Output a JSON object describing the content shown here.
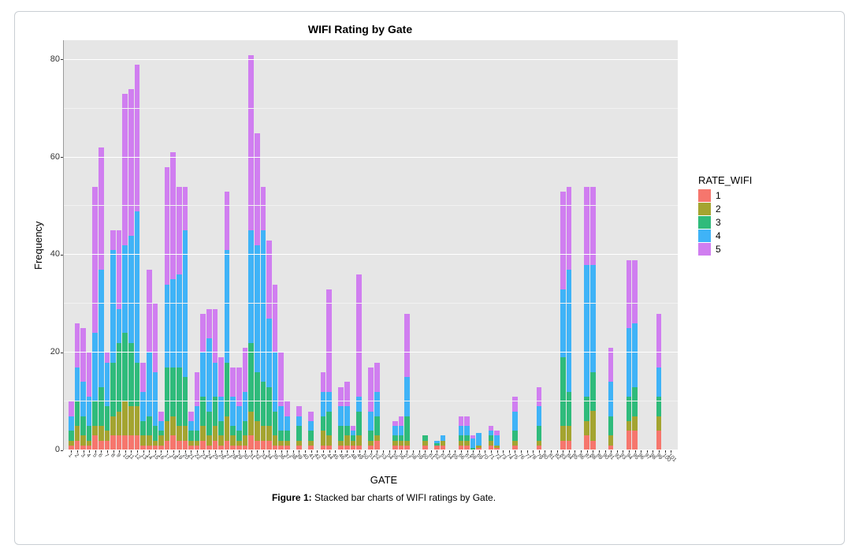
{
  "chart": {
    "type": "stacked-bar",
    "title": "WIFI Rating by Gate",
    "x_axis_title": "GATE",
    "y_axis_title": "Frequency",
    "ylim": [
      0,
      84
    ],
    "y_ticks": [
      0,
      20,
      40,
      60,
      80
    ],
    "background_color": "#e6e6e6",
    "grid_color": "#ffffff",
    "panel_border_color": "#c9ced3",
    "legend": {
      "title": "RATE_WIFI",
      "items": [
        {
          "label": "1",
          "color": "#f6766d"
        },
        {
          "label": "2",
          "color": "#a4a430"
        },
        {
          "label": "3",
          "color": "#2fbb7b"
        },
        {
          "label": "4",
          "color": "#3fb3f7"
        },
        {
          "label": "5",
          "color": "#d07ef0"
        }
      ]
    },
    "series_colors": {
      "1": "#f6766d",
      "2": "#a4a430",
      "3": "#2fbb7b",
      "4": "#3fb3f7",
      "5": "#d07ef0"
    },
    "categories": [
      "1",
      "2",
      "3",
      "4",
      "5",
      "6",
      "7",
      "8",
      "9",
      "10",
      "11",
      "12",
      "13",
      "14",
      "15",
      "16",
      "17",
      "18",
      "19",
      "20",
      "21",
      "22",
      "23",
      "24",
      "25",
      "26",
      "27",
      "28",
      "29",
      "30",
      "31",
      "32",
      "33",
      "34",
      "35",
      "36",
      "37",
      "38",
      "39",
      "40",
      "41",
      "42",
      "43",
      "44",
      "45",
      "46",
      "47",
      "48",
      "49",
      "50",
      "51",
      "52",
      "53",
      "54",
      "55",
      "56",
      "57",
      "58",
      "59",
      "60",
      "61",
      "62",
      "63",
      "64",
      "65",
      "66",
      "67",
      "68",
      "69",
      "70",
      "71",
      "72",
      "73",
      "74",
      "75",
      "76",
      "77",
      "78",
      "79",
      "80",
      "81",
      "82",
      "83",
      "84",
      "85",
      "86",
      "87",
      "88",
      "89",
      "90",
      "91",
      "92",
      "93",
      "94",
      "95",
      "96",
      "97",
      "98",
      "99",
      "100",
      "101"
    ],
    "stacks": [
      {
        "1": 1,
        "2": 1,
        "3": 2,
        "4": 3,
        "5": 3
      },
      {
        "1": 2,
        "2": 3,
        "3": 5,
        "4": 7,
        "5": 9
      },
      {
        "1": 1,
        "2": 2,
        "3": 4,
        "4": 7,
        "5": 11
      },
      {
        "1": 1,
        "2": 1,
        "3": 3,
        "4": 6,
        "5": 9
      },
      {
        "1": 3,
        "2": 2,
        "3": 5,
        "4": 14,
        "5": 30
      },
      {
        "1": 2,
        "2": 3,
        "3": 8,
        "4": 24,
        "5": 25
      },
      {
        "1": 2,
        "2": 2,
        "3": 5,
        "4": 9,
        "5": 2
      },
      {
        "1": 3,
        "2": 4,
        "3": 11,
        "4": 23,
        "5": 4
      },
      {
        "1": 3,
        "2": 5,
        "3": 14,
        "4": 7,
        "5": 16
      },
      {
        "1": 3,
        "2": 7,
        "3": 14,
        "4": 18,
        "5": 31
      },
      {
        "1": 3,
        "2": 6,
        "3": 13,
        "4": 22,
        "5": 30
      },
      {
        "1": 3,
        "2": 6,
        "3": 9,
        "4": 31,
        "5": 30
      },
      {
        "1": 1,
        "2": 2,
        "3": 3,
        "4": 6,
        "5": 6
      },
      {
        "1": 1,
        "2": 2,
        "3": 4,
        "4": 13,
        "5": 17
      },
      {
        "1": 1,
        "2": 1,
        "3": 3,
        "4": 11,
        "5": 14
      },
      {
        "1": 1,
        "2": 2,
        "3": 1,
        "4": 2,
        "5": 2
      },
      {
        "1": 2,
        "2": 4,
        "3": 11,
        "4": 17,
        "5": 24
      },
      {
        "1": 3,
        "2": 4,
        "3": 10,
        "4": 18,
        "5": 26
      },
      {
        "1": 2,
        "2": 3,
        "3": 12,
        "4": 19,
        "5": 18
      },
      {
        "1": 2,
        "2": 3,
        "3": 10,
        "4": 30,
        "5": 9
      },
      {
        "1": 1,
        "2": 1,
        "3": 2,
        "4": 2,
        "5": 2
      },
      {
        "1": 1,
        "2": 1,
        "3": 2,
        "4": 5,
        "5": 7
      },
      {
        "1": 2,
        "2": 3,
        "3": 6,
        "4": 9,
        "5": 8
      },
      {
        "1": 1,
        "2": 2,
        "3": 5,
        "4": 15,
        "5": 6
      },
      {
        "1": 2,
        "2": 3,
        "3": 6,
        "4": 7,
        "5": 11
      },
      {
        "1": 1,
        "2": 2,
        "3": 3,
        "4": 5,
        "5": 8
      },
      {
        "1": 2,
        "2": 5,
        "3": 11,
        "4": 23,
        "5": 12
      },
      {
        "1": 1,
        "2": 2,
        "3": 2,
        "4": 6,
        "5": 6
      },
      {
        "1": 1,
        "2": 1,
        "3": 2,
        "4": 5,
        "5": 8
      },
      {
        "1": 1,
        "2": 2,
        "3": 3,
        "4": 6,
        "5": 9
      },
      {
        "1": 3,
        "2": 5,
        "3": 14,
        "4": 23,
        "5": 36
      },
      {
        "1": 2,
        "2": 4,
        "3": 10,
        "4": 26,
        "5": 23
      },
      {
        "1": 2,
        "2": 3,
        "3": 9,
        "4": 31,
        "5": 9
      },
      {
        "1": 2,
        "2": 3,
        "3": 8,
        "4": 14,
        "5": 16
      },
      {
        "1": 1,
        "2": 2,
        "3": 5,
        "4": 12,
        "5": 14
      },
      {
        "1": 1,
        "2": 1,
        "3": 2,
        "4": 5,
        "5": 11
      },
      {
        "1": 1,
        "2": 1,
        "3": 2,
        "4": 3,
        "5": 3
      },
      {
        "1": 0,
        "2": 0,
        "3": 0,
        "4": 0,
        "5": 0
      },
      {
        "1": 1,
        "2": 1,
        "3": 3,
        "4": 2,
        "5": 2
      },
      {
        "1": 0,
        "2": 0,
        "3": 0,
        "4": 0,
        "5": 0
      },
      {
        "1": 1,
        "2": 1,
        "3": 2,
        "4": 2,
        "5": 2
      },
      {
        "1": 0,
        "2": 0,
        "3": 0,
        "4": 0,
        "5": 0
      },
      {
        "1": 1,
        "2": 3,
        "3": 3,
        "4": 5,
        "5": 4
      },
      {
        "1": 1,
        "2": 2,
        "3": 5,
        "4": 4,
        "5": 21
      },
      {
        "1": 0,
        "2": 0,
        "3": 0,
        "4": 0,
        "5": 0
      },
      {
        "1": 1,
        "2": 1,
        "3": 3,
        "4": 4,
        "5": 4
      },
      {
        "1": 1,
        "2": 2,
        "3": 2,
        "4": 4,
        "5": 5
      },
      {
        "1": 1,
        "2": 1,
        "3": 1,
        "4": 1,
        "5": 1
      },
      {
        "1": 1,
        "2": 2,
        "3": 5,
        "4": 3,
        "5": 25
      },
      {
        "1": 0,
        "2": 0,
        "3": 0,
        "4": 0,
        "5": 0
      },
      {
        "1": 1,
        "2": 1,
        "3": 2,
        "4": 4,
        "5": 9
      },
      {
        "1": 2,
        "2": 1,
        "3": 4,
        "4": 5,
        "5": 6
      },
      {
        "1": 0,
        "2": 0,
        "3": 0,
        "4": 0,
        "5": 0
      },
      {
        "1": 0,
        "2": 0,
        "3": 0,
        "4": 0,
        "5": 0
      },
      {
        "1": 1,
        "2": 1,
        "3": 1,
        "4": 2,
        "5": 1
      },
      {
        "1": 1,
        "2": 1,
        "3": 1,
        "4": 2,
        "5": 2
      },
      {
        "1": 1,
        "2": 1,
        "3": 5,
        "4": 8,
        "5": 13
      },
      {
        "1": 0,
        "2": 0,
        "3": 0,
        "4": 0,
        "5": 0
      },
      {
        "1": 0,
        "2": 0,
        "3": 0,
        "4": 0,
        "5": 0
      },
      {
        "1": 1,
        "2": 1,
        "3": 1,
        "4": 0,
        "5": 0
      },
      {
        "1": 0,
        "2": 0,
        "3": 0,
        "4": 0,
        "5": 0
      },
      {
        "1": 1,
        "2": 0,
        "3": 0.5,
        "4": 0.5,
        "5": 0
      },
      {
        "1": 1,
        "2": 1,
        "3": 0,
        "4": 1,
        "5": 0
      },
      {
        "1": 0,
        "2": 0,
        "3": 0,
        "4": 0,
        "5": 0
      },
      {
        "1": 0,
        "2": 0,
        "3": 0,
        "4": 0,
        "5": 0
      },
      {
        "1": 1,
        "2": 1,
        "3": 1,
        "4": 2,
        "5": 2
      },
      {
        "1": 1,
        "2": 1,
        "3": 1,
        "4": 2,
        "5": 2
      },
      {
        "1": 0,
        "2": 0,
        "3": 0.5,
        "4": 2,
        "5": 0.5
      },
      {
        "1": 0.5,
        "2": 0.5,
        "3": 0,
        "4": 2.5,
        "5": 0
      },
      {
        "1": 0,
        "2": 0,
        "3": 0,
        "4": 0,
        "5": 0
      },
      {
        "1": 1,
        "2": 1,
        "3": 1,
        "4": 1,
        "5": 1
      },
      {
        "1": 0.5,
        "2": 0.5,
        "3": 0,
        "4": 2,
        "5": 1
      },
      {
        "1": 0,
        "2": 0,
        "3": 0,
        "4": 0,
        "5": 0
      },
      {
        "1": 0,
        "2": 0,
        "3": 0,
        "4": 0,
        "5": 0
      },
      {
        "1": 1,
        "2": 1,
        "3": 2,
        "4": 4,
        "5": 3
      },
      {
        "1": 0,
        "2": 0,
        "3": 0,
        "4": 0,
        "5": 0
      },
      {
        "1": 0,
        "2": 0,
        "3": 0,
        "4": 0,
        "5": 0
      },
      {
        "1": 0,
        "2": 0,
        "3": 0,
        "4": 0,
        "5": 0
      },
      {
        "1": 1,
        "2": 1,
        "3": 3,
        "4": 4,
        "5": 4
      },
      {
        "1": 0,
        "2": 0,
        "3": 0,
        "4": 0,
        "5": 0
      },
      {
        "1": 0,
        "2": 0,
        "3": 0,
        "4": 0,
        "5": 0
      },
      {
        "1": 0,
        "2": 0,
        "3": 0,
        "4": 0,
        "5": 0
      },
      {
        "1": 2,
        "2": 3,
        "3": 14,
        "4": 14,
        "5": 20
      },
      {
        "1": 2,
        "2": 3,
        "3": 7,
        "4": 25,
        "5": 17
      },
      {
        "1": 0,
        "2": 0,
        "3": 0,
        "4": 0,
        "5": 0
      },
      {
        "1": 0,
        "2": 0,
        "3": 0,
        "4": 0,
        "5": 0
      },
      {
        "1": 3,
        "2": 3,
        "3": 5,
        "4": 27,
        "5": 16
      },
      {
        "1": 2,
        "2": 6,
        "3": 8,
        "4": 22,
        "5": 16
      },
      {
        "1": 0,
        "2": 0,
        "3": 0,
        "4": 0,
        "5": 0
      },
      {
        "1": 0,
        "2": 0,
        "3": 0,
        "4": 0,
        "5": 0
      },
      {
        "1": 1,
        "2": 2,
        "3": 4,
        "4": 7,
        "5": 7
      },
      {
        "1": 0,
        "2": 0,
        "3": 0,
        "4": 0,
        "5": 0
      },
      {
        "1": 0,
        "2": 0,
        "3": 0,
        "4": 0,
        "5": 0
      },
      {
        "1": 4,
        "2": 2,
        "3": 5,
        "4": 14,
        "5": 14
      },
      {
        "1": 4,
        "2": 3,
        "3": 6,
        "4": 13,
        "5": 13
      },
      {
        "1": 0,
        "2": 0,
        "3": 0,
        "4": 0,
        "5": 0
      },
      {
        "1": 0,
        "2": 0,
        "3": 0,
        "4": 0,
        "5": 0
      },
      {
        "1": 0,
        "2": 0,
        "3": 0,
        "4": 0,
        "5": 0
      },
      {
        "1": 4,
        "2": 3,
        "3": 4,
        "4": 6,
        "5": 11
      },
      {
        "1": 0,
        "2": 0,
        "3": 0,
        "4": 0,
        "5": 0
      },
      {
        "1": 0,
        "2": 0,
        "3": 0,
        "4": 0,
        "5": 0
      }
    ]
  },
  "caption": {
    "label": "Figure 1:",
    "text": "Stacked bar charts of WIFI ratings by Gate."
  }
}
